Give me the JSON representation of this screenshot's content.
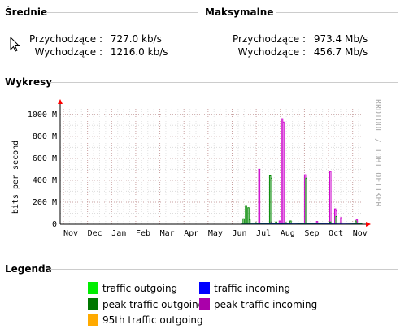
{
  "averages": {
    "title": "Średnie",
    "incoming_label": "Przychodzące :",
    "incoming_value": "727.0 kb/s",
    "outgoing_label": "Wychodzące :",
    "outgoing_value": "1216.0 kb/s"
  },
  "maximums": {
    "title": "Maksymalne",
    "incoming_label": "Przychodzące :",
    "incoming_value": "973.4 Mb/s",
    "outgoing_label": "Wychodzące :",
    "outgoing_value": "456.7 Mb/s"
  },
  "charts_section": {
    "title": "Wykresy"
  },
  "legend_section": {
    "title": "Legenda"
  },
  "chart_data": {
    "type": "line",
    "ylabel": "bits per second",
    "watermark": "RRDTOOL / TOBI OETIKER",
    "ylim": [
      0,
      1050
    ],
    "y_ticks": [
      0,
      200,
      400,
      600,
      800,
      1000
    ],
    "y_tick_labels": [
      "0",
      "200 M",
      "400 M",
      "600 M",
      "800 M",
      "1000 M"
    ],
    "categories": [
      "Nov",
      "Dec",
      "Jan",
      "Feb",
      "Mar",
      "Apr",
      "May",
      "Jun",
      "Jul",
      "Aug",
      "Sep",
      "Oct",
      "Nov"
    ],
    "grid": true,
    "colors": {
      "traffic_outgoing": "#00ee00",
      "traffic_incoming": "#0000ff",
      "peak_traffic_outgoing": "#006600",
      "peak_traffic_incoming": "#ff00ff",
      "p95_outgoing": "#ffaa00"
    },
    "series": [
      {
        "name": "peak traffic incoming",
        "color": "#cc00cc",
        "kind": "spikes",
        "points": [
          [
            8.05,
            5
          ],
          [
            8.1,
            500
          ],
          [
            8.6,
            20
          ],
          [
            8.95,
            30
          ],
          [
            9.05,
            960
          ],
          [
            9.1,
            930
          ],
          [
            9.25,
            10
          ],
          [
            10.0,
            450
          ],
          [
            10.5,
            25
          ],
          [
            11.05,
            480
          ],
          [
            11.25,
            140
          ],
          [
            11.3,
            120
          ],
          [
            11.5,
            60
          ],
          [
            12.15,
            40
          ]
        ]
      },
      {
        "name": "peak traffic outgoing",
        "color": "#008800",
        "kind": "spikes",
        "points": [
          [
            7.45,
            50
          ],
          [
            7.55,
            170
          ],
          [
            7.65,
            150
          ],
          [
            7.7,
            40
          ],
          [
            7.95,
            15
          ],
          [
            8.55,
            440
          ],
          [
            8.6,
            420
          ],
          [
            8.8,
            20
          ],
          [
            9.2,
            15
          ],
          [
            9.4,
            30
          ],
          [
            10.05,
            420
          ],
          [
            10.55,
            10
          ],
          [
            11.05,
            20
          ],
          [
            11.3,
            70
          ],
          [
            12.1,
            30
          ]
        ]
      },
      {
        "name": "traffic outgoing",
        "color": "#00cc00",
        "kind": "baseline",
        "points": [
          [
            7.4,
            3
          ],
          [
            8.0,
            4
          ],
          [
            8.5,
            8
          ],
          [
            9.0,
            6
          ],
          [
            9.5,
            10
          ],
          [
            10.0,
            5
          ],
          [
            10.5,
            7
          ],
          [
            11.0,
            9
          ],
          [
            11.5,
            12
          ],
          [
            12.0,
            8
          ],
          [
            12.4,
            5
          ]
        ]
      },
      {
        "name": "traffic incoming",
        "color": "#0000ff",
        "kind": "baseline",
        "points": [
          [
            7.4,
            1
          ],
          [
            8.0,
            2
          ],
          [
            9.0,
            3
          ],
          [
            10.0,
            2
          ],
          [
            11.0,
            3
          ],
          [
            12.0,
            2
          ],
          [
            12.4,
            1
          ]
        ]
      }
    ]
  },
  "legend": {
    "items": [
      {
        "label": "traffic outgoing",
        "color": "#00ee00"
      },
      {
        "label": "traffic incoming",
        "color": "#0000ff"
      },
      {
        "label": "peak traffic outgoing",
        "color": "#007700"
      },
      {
        "label": "peak traffic incoming",
        "color": "#aa00aa"
      },
      {
        "label": "95th traffic outgoing",
        "color": "#ffaa00"
      }
    ]
  }
}
